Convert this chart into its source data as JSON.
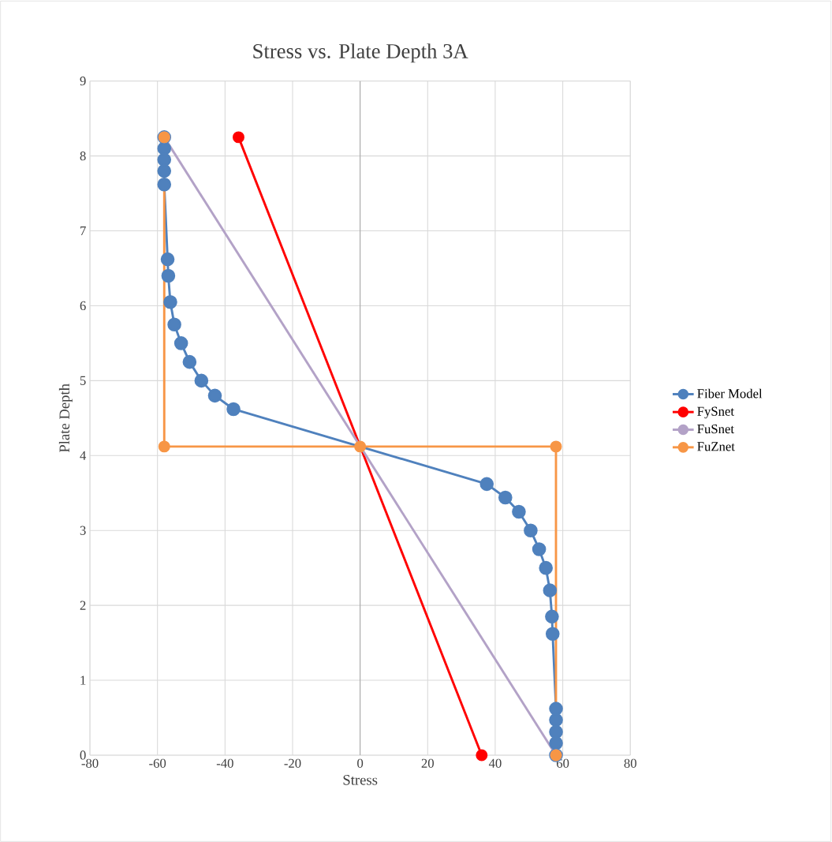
{
  "chart_data": {
    "type": "line",
    "title": "Stress vs. Plate Depth 3A",
    "xlabel": "Stress",
    "ylabel": "Plate Depth",
    "xlim": [
      -80,
      80
    ],
    "xticks": [
      -80,
      -60,
      -40,
      -20,
      0,
      20,
      40,
      60,
      80
    ],
    "ylim": [
      0,
      9
    ],
    "yticks": [
      0,
      1,
      2,
      3,
      4,
      5,
      6,
      7,
      8,
      9
    ],
    "grid": true,
    "legend": "right",
    "marker": "circle",
    "line_style": "solid",
    "series": [
      {
        "name": "Fiber Model",
        "color": "#4f81bd",
        "x": [
          -58,
          -58,
          -58,
          -58,
          -58,
          -57,
          -56.8,
          -56.2,
          -55,
          -53,
          -50.5,
          -47,
          -43,
          -37.5,
          37.5,
          43,
          47,
          50.5,
          53,
          55,
          56.2,
          56.8,
          57,
          58,
          58,
          58,
          58,
          58
        ],
        "values": [
          8.25,
          8.1,
          7.95,
          7.8,
          7.62,
          6.62,
          6.4,
          6.05,
          5.75,
          5.5,
          5.25,
          5.0,
          4.8,
          4.62,
          3.62,
          3.44,
          3.25,
          3.0,
          2.75,
          2.5,
          2.2,
          1.85,
          1.62,
          0.62,
          0.47,
          0.31,
          0.16,
          0
        ]
      },
      {
        "name": "FySnet",
        "color": "#ff0000",
        "x": [
          -36,
          36
        ],
        "values": [
          8.25,
          0
        ]
      },
      {
        "name": "FuSnet",
        "color": "#b3a2c7",
        "x": [
          -58,
          58
        ],
        "values": [
          8.25,
          0
        ]
      },
      {
        "name": "FuZnet",
        "color": "#f79646",
        "x": [
          -58,
          -58,
          0,
          58,
          58
        ],
        "values": [
          8.25,
          4.12,
          4.12,
          4.12,
          0
        ]
      }
    ]
  }
}
